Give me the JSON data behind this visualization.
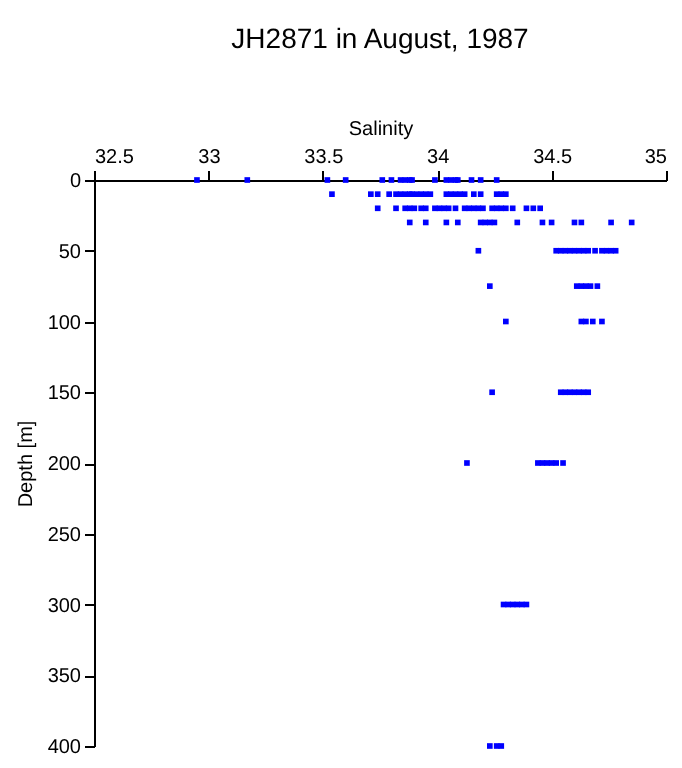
{
  "chart_data": {
    "type": "scatter",
    "title": "JH2871 in August, 1987",
    "xlabel": "Salinity",
    "ylabel": "Depth [m]",
    "xlim": [
      32.5,
      35
    ],
    "xticks": [
      32.5,
      33,
      33.5,
      34,
      34.5,
      35
    ],
    "ylim": [
      400,
      0
    ],
    "yticks": [
      0,
      50,
      100,
      150,
      200,
      250,
      300,
      350,
      400
    ],
    "grid": false,
    "marker": "square",
    "series": [
      {
        "color": "#0000ff",
        "x": [
          32.95,
          33.17,
          33.52,
          33.6,
          33.76,
          33.8,
          33.84,
          33.86,
          33.88,
          33.89,
          33.99,
          34.04,
          34.06,
          34.08,
          34.09,
          34.15,
          34.19,
          34.26,
          33.54,
          33.71,
          33.74,
          33.79,
          33.82,
          33.84,
          33.86,
          33.88,
          33.89,
          33.91,
          33.93,
          33.95,
          33.97,
          34.04,
          34.06,
          34.08,
          34.1,
          34.12,
          34.16,
          34.19,
          34.26,
          34.28,
          34.3,
          33.74,
          33.82,
          33.86,
          33.88,
          33.9,
          33.93,
          33.95,
          33.99,
          34.01,
          34.03,
          34.05,
          34.08,
          34.12,
          34.14,
          34.16,
          34.18,
          34.2,
          34.24,
          34.26,
          34.28,
          34.3,
          34.33,
          34.39,
          34.42,
          34.45,
          33.88,
          33.95,
          34.04,
          34.09,
          34.19,
          34.21,
          34.23,
          34.25,
          34.35,
          34.46,
          34.5,
          34.6,
          34.63,
          34.76,
          34.85,
          34.18,
          34.52,
          34.54,
          34.56,
          34.58,
          34.6,
          34.62,
          34.64,
          34.66,
          34.69,
          34.72,
          34.74,
          34.76,
          34.78,
          34.23,
          34.61,
          34.63,
          34.65,
          34.67,
          34.7,
          34.3,
          34.63,
          34.65,
          34.68,
          34.72,
          34.24,
          34.54,
          34.56,
          34.58,
          34.6,
          34.62,
          34.64,
          34.66,
          34.13,
          34.44,
          34.46,
          34.48,
          34.5,
          34.52,
          34.55,
          34.29,
          34.31,
          34.33,
          34.35,
          34.37,
          34.39,
          34.23,
          34.26,
          34.28
        ],
        "values": [
          0,
          0,
          0,
          0,
          0,
          0,
          0,
          0,
          0,
          0,
          0,
          0,
          0,
          0,
          0,
          0,
          0,
          0,
          10,
          10,
          10,
          10,
          10,
          10,
          10,
          10,
          10,
          10,
          10,
          10,
          10,
          10,
          10,
          10,
          10,
          10,
          10,
          10,
          10,
          10,
          10,
          20,
          20,
          20,
          20,
          20,
          20,
          20,
          20,
          20,
          20,
          20,
          20,
          20,
          20,
          20,
          20,
          20,
          20,
          20,
          20,
          20,
          20,
          20,
          20,
          20,
          30,
          30,
          30,
          30,
          30,
          30,
          30,
          30,
          30,
          30,
          30,
          30,
          30,
          30,
          30,
          50,
          50,
          50,
          50,
          50,
          50,
          50,
          50,
          50,
          50,
          50,
          50,
          50,
          50,
          75,
          75,
          75,
          75,
          75,
          75,
          100,
          100,
          100,
          100,
          100,
          150,
          150,
          150,
          150,
          150,
          150,
          150,
          150,
          200,
          200,
          200,
          200,
          200,
          200,
          200,
          300,
          300,
          300,
          300,
          300,
          300,
          400,
          400,
          400
        ]
      }
    ]
  }
}
